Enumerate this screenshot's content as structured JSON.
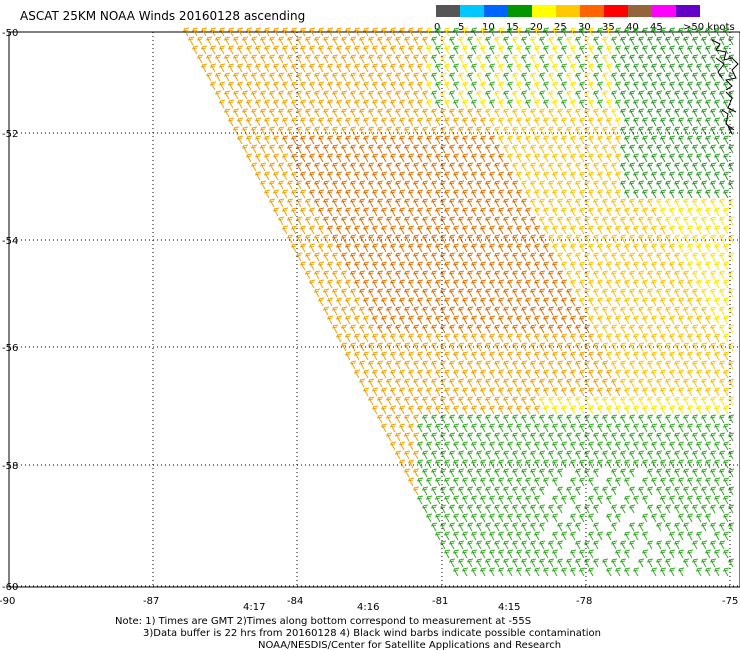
{
  "title": "ASCAT 25KM NOAA Winds 20160128 ascending",
  "legend": {
    "unit_label": ">50 knots",
    "ticks": [
      "0",
      "5",
      "10",
      "15",
      "20",
      "25",
      "30",
      "35",
      "40",
      "45"
    ],
    "colors": [
      "#555555",
      "#00c8ff",
      "#0064ff",
      "#009600",
      "#ffff00",
      "#ffc800",
      "#ff6400",
      "#ff0000",
      "#96643c",
      "#ff00ff",
      "#6400c8"
    ]
  },
  "lat_labels": [
    "-50",
    "-52",
    "-54",
    "-56",
    "-58",
    "-60"
  ],
  "lon_labels": [
    "-90",
    "-87",
    "-84",
    "-81",
    "-78",
    "-75"
  ],
  "times": [
    "4:17",
    "4:16",
    "4:15"
  ],
  "notes": {
    "line1": "Note: 1) Times are GMT 2)Times along bottom correspond to measurement at -55S",
    "line2": "3)Data buffer is 22 hrs from 20160128 4) Black wind barbs indicate possible contamination",
    "line3": "NOAA/NESDIS/Center for Satellite Applications and Research"
  },
  "colors": {
    "time_label": "#8000a0",
    "grid": "#000000"
  }
}
